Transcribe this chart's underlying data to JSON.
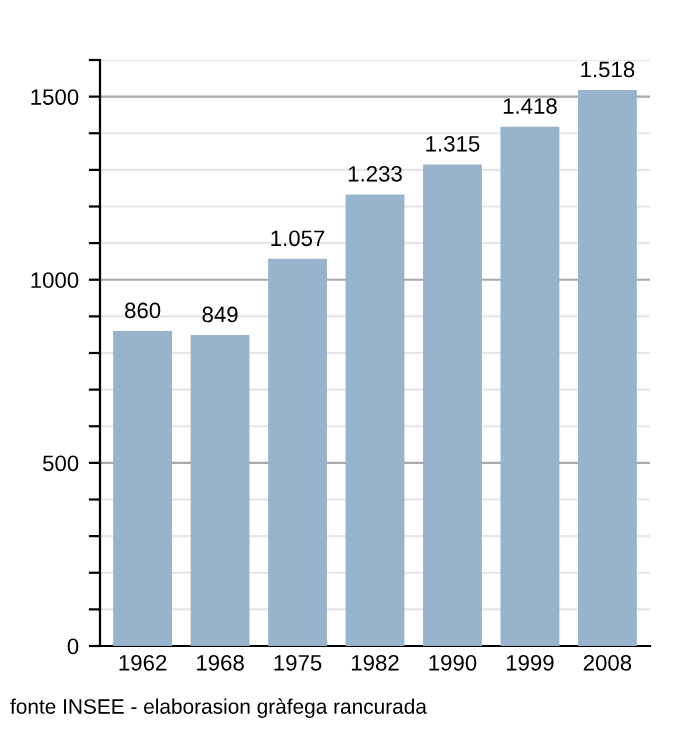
{
  "chart_data": {
    "type": "bar",
    "categories": [
      "1962",
      "1968",
      "1975",
      "1982",
      "1990",
      "1999",
      "2008"
    ],
    "values": [
      860,
      849,
      1057,
      1233,
      1315,
      1418,
      1518
    ],
    "value_labels": [
      "860",
      "849",
      "1.057",
      "1.233",
      "1.315",
      "1.418",
      "1.518"
    ],
    "color": "#98b3cc",
    "ylim": [
      0,
      1600
    ],
    "yticks": [
      0,
      {
        "value": 100,
        "label": null
      },
      {
        "value": 200,
        "label": null
      },
      {
        "value": 300,
        "label": null
      },
      {
        "value": 400,
        "label": null
      },
      500,
      {
        "value": 600,
        "label": null
      },
      {
        "value": 700,
        "label": null
      },
      {
        "value": 800,
        "label": null
      },
      {
        "value": 900,
        "label": null
      },
      1000,
      {
        "value": 1100,
        "label": null
      },
      {
        "value": 1200,
        "label": null
      },
      {
        "value": 1300,
        "label": null
      },
      {
        "value": 1400,
        "label": null
      },
      1500,
      {
        "value": 1600,
        "label": null
      }
    ],
    "grid": "y",
    "annotations": [
      "fonte INSEE - elaborasion gràfega rancurada"
    ]
  }
}
